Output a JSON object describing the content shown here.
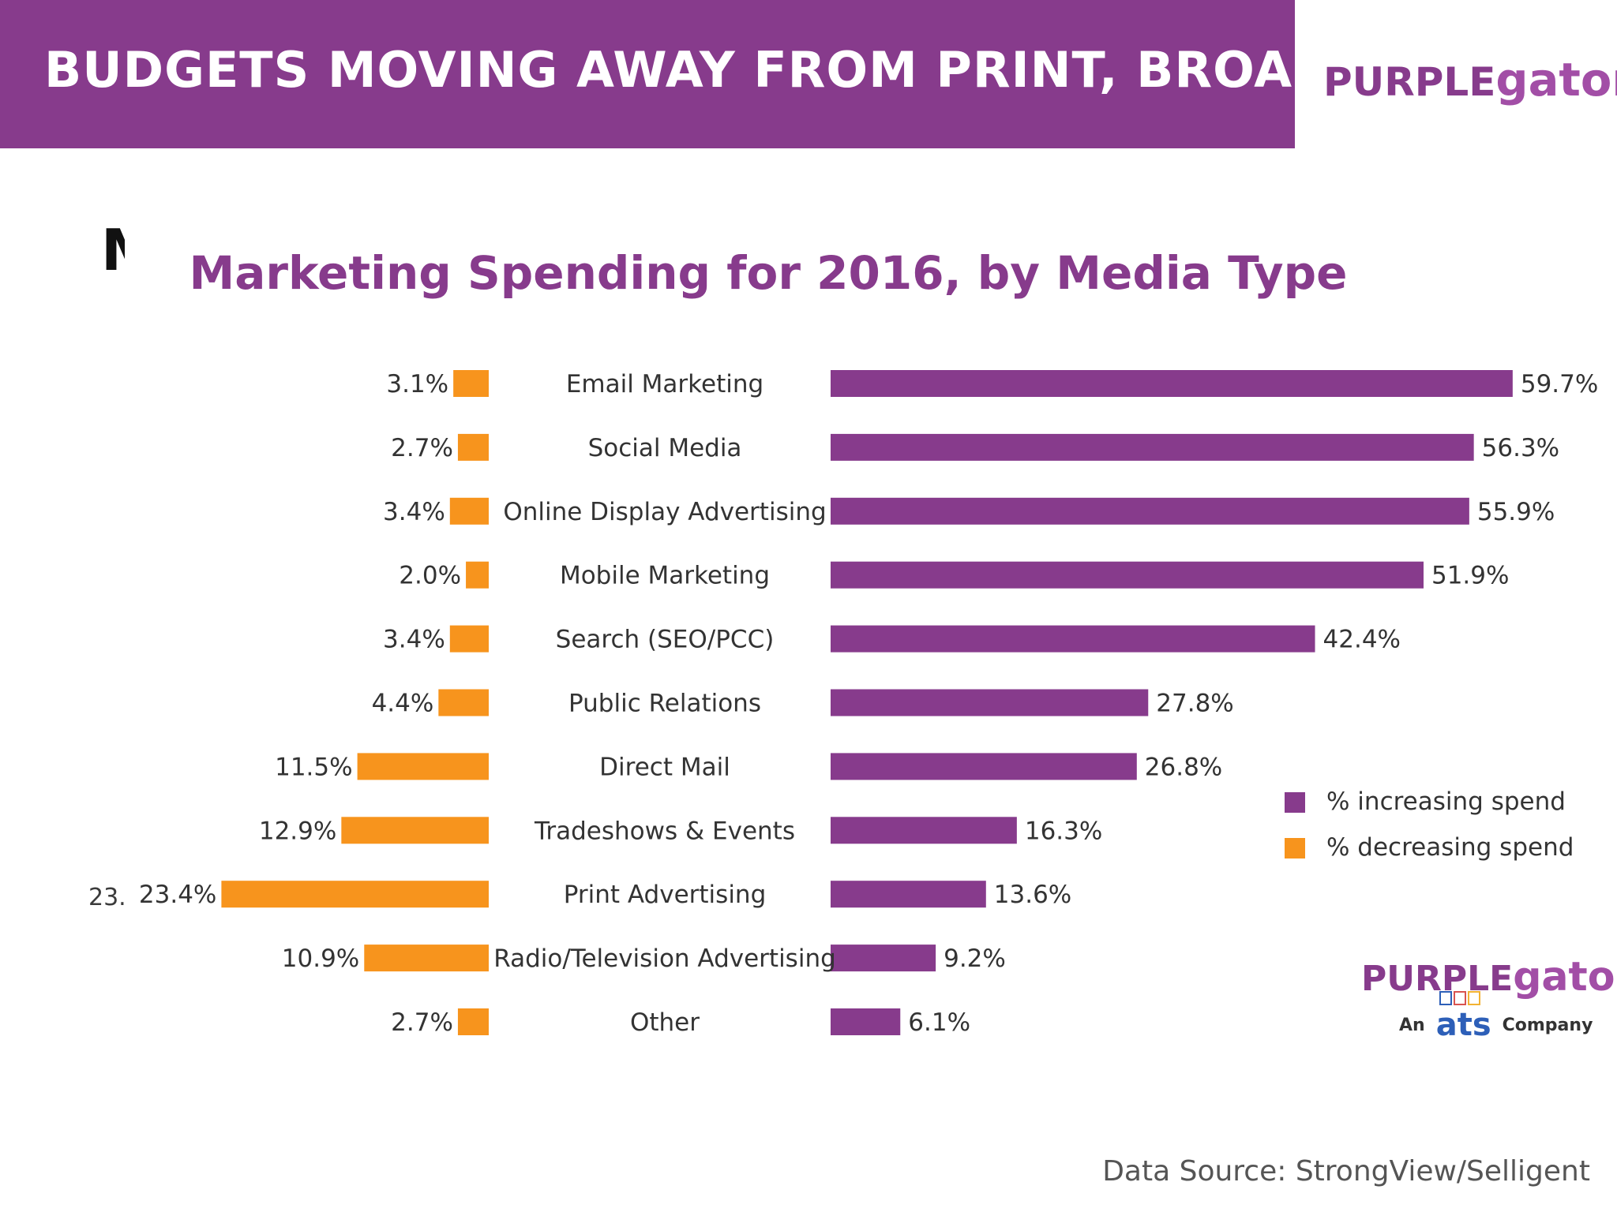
{
  "header": {
    "title": "BUDGETS MOVING AWAY FROM PRINT, BROADCAST"
  },
  "brand": {
    "logo_part1": "PURPLE",
    "logo_part2": "gator",
    "tagline_prefix": "An",
    "tagline_brand": "ats",
    "tagline_suffix": "Company"
  },
  "colors": {
    "purple": "#873b8c",
    "orange": "#f7941d"
  },
  "cut_glyph": "M",
  "stray_label": "23.",
  "source": "Data Source: StrongView/Selligent",
  "chart_data": {
    "type": "bar",
    "title": "Marketing Spending for 2016, by Media Type",
    "categories": [
      "Email Marketing",
      "Social Media",
      "Online Display Advertising",
      "Mobile Marketing",
      "Search (SEO/PCC)",
      "Public Relations",
      "Direct Mail",
      "Tradeshows & Events",
      "Print Advertising",
      "Radio/Television Advertising",
      "Other"
    ],
    "series": [
      {
        "name": "% increasing spend",
        "color": "#873b8c",
        "values": [
          59.7,
          56.3,
          55.9,
          51.9,
          42.4,
          27.8,
          26.8,
          16.3,
          13.6,
          9.2,
          6.1
        ]
      },
      {
        "name": "% decreasing spend",
        "color": "#f7941d",
        "values": [
          3.1,
          2.7,
          3.4,
          2.0,
          3.4,
          4.4,
          11.5,
          12.9,
          23.4,
          10.9,
          2.7
        ]
      }
    ],
    "legend": "right"
  }
}
